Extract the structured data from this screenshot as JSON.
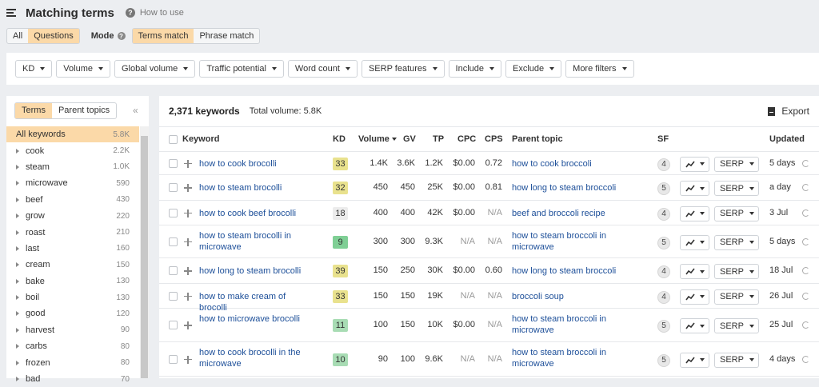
{
  "header": {
    "title": "Matching terms",
    "how_to": "How to use"
  },
  "toolbar": {
    "all_label": "All",
    "questions_label": "Questions",
    "mode_label": "Mode",
    "terms_match_label": "Terms match",
    "phrase_match_label": "Phrase match"
  },
  "filters": [
    "KD",
    "Volume",
    "Global volume",
    "Traffic potential",
    "Word count",
    "SERP features",
    "Include",
    "Exclude",
    "More filters"
  ],
  "sidebar": {
    "tab_terms": "Terms",
    "tab_parent_topics": "Parent topics",
    "collapse_glyph": "«",
    "items": [
      {
        "label": "All keywords",
        "count": "5.8K",
        "selected": true
      },
      {
        "label": "cook",
        "count": "2.2K"
      },
      {
        "label": "steam",
        "count": "1.0K"
      },
      {
        "label": "microwave",
        "count": "590"
      },
      {
        "label": "beef",
        "count": "430"
      },
      {
        "label": "grow",
        "count": "220"
      },
      {
        "label": "roast",
        "count": "210"
      },
      {
        "label": "last",
        "count": "160"
      },
      {
        "label": "cream",
        "count": "150"
      },
      {
        "label": "bake",
        "count": "130"
      },
      {
        "label": "boil",
        "count": "130"
      },
      {
        "label": "good",
        "count": "120"
      },
      {
        "label": "harvest",
        "count": "90"
      },
      {
        "label": "carbs",
        "count": "80"
      },
      {
        "label": "frozen",
        "count": "80"
      },
      {
        "label": "bad",
        "count": "70"
      }
    ]
  },
  "main": {
    "keyword_count": "2,371 keywords",
    "total_volume": "Total volume: 5.8K",
    "export_label": "Export"
  },
  "table": {
    "headers": {
      "keyword": "Keyword",
      "kd": "KD",
      "volume": "Volume",
      "gv": "GV",
      "tp": "TP",
      "cpc": "CPC",
      "cps": "CPS",
      "parent_topic": "Parent topic",
      "sf": "SF",
      "updated": "Updated"
    },
    "serp_label": "SERP",
    "rows": [
      {
        "keyword": "how to cook brocolli",
        "kd": "33",
        "kd_color": "#e9e28e",
        "volume": "1.4K",
        "gv": "3.6K",
        "tp": "1.2K",
        "cpc": "$0.00",
        "cps": "0.72",
        "parent_topic": "how to cook broccoli",
        "sf": "4",
        "updated": "5 days"
      },
      {
        "keyword": "how to steam brocolli",
        "kd": "32",
        "kd_color": "#e9e28e",
        "volume": "450",
        "gv": "450",
        "tp": "25K",
        "cpc": "$0.00",
        "cps": "0.81",
        "parent_topic": "how long to steam broccoli",
        "sf": "5",
        "updated": "a day"
      },
      {
        "keyword": "how to cook beef brocolli",
        "kd": "18",
        "kd_color": "#ececec",
        "volume": "400",
        "gv": "400",
        "tp": "42K",
        "cpc": "$0.00",
        "cps": "N/A",
        "parent_topic": "beef and broccoli recipe",
        "sf": "4",
        "updated": "3 Jul"
      },
      {
        "keyword": "how to steam brocolli in microwave",
        "kd": "9",
        "kd_color": "#7fcf95",
        "volume": "300",
        "gv": "300",
        "tp": "9.3K",
        "cpc": "N/A",
        "cps": "N/A",
        "parent_topic": "how to steam broccoli in microwave",
        "sf": "5",
        "updated": "5 days"
      },
      {
        "keyword": "how long to steam brocolli",
        "kd": "39",
        "kd_color": "#e9e28e",
        "volume": "150",
        "gv": "250",
        "tp": "30K",
        "cpc": "$0.00",
        "cps": "0.60",
        "parent_topic": "how long to steam broccoli",
        "sf": "4",
        "updated": "18 Jul"
      },
      {
        "keyword": "how to make cream of brocolli",
        "kd": "33",
        "kd_color": "#e9e28e",
        "volume": "150",
        "gv": "150",
        "tp": "19K",
        "cpc": "N/A",
        "cps": "N/A",
        "parent_topic": "broccoli soup",
        "sf": "4",
        "updated": "26 Jul"
      },
      {
        "keyword": "how to microwave brocolli",
        "kd": "11",
        "kd_color": "#a8dcb4",
        "volume": "100",
        "gv": "150",
        "tp": "10K",
        "cpc": "$0.00",
        "cps": "N/A",
        "parent_topic": "how to steam broccoli in microwave",
        "sf": "5",
        "updated": "25 Jul"
      },
      {
        "keyword": "how to cook brocolli in the microwave",
        "kd": "10",
        "kd_color": "#a8dcb4",
        "volume": "90",
        "gv": "100",
        "tp": "9.6K",
        "cpc": "N/A",
        "cps": "N/A",
        "parent_topic": "how to steam broccoli in microwave",
        "sf": "5",
        "updated": "4 days"
      }
    ]
  },
  "icons": [
    "menu-icon",
    "help-icon",
    "caret-down-icon",
    "collapse-icon",
    "export-icon",
    "trend-icon",
    "refresh-icon",
    "plus-icon"
  ]
}
